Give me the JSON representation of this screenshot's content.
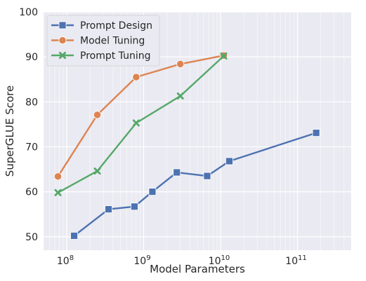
{
  "chart_data": {
    "type": "line",
    "xlabel": "Model Parameters",
    "ylabel": "SuperGLUE Score",
    "xscale": "log",
    "xlim": [
      50000000,
      500000000000
    ],
    "ylim": [
      47,
      100
    ],
    "x_ticks": [
      {
        "value": 100000000,
        "base": "10",
        "exp": "8"
      },
      {
        "value": 1000000000,
        "base": "10",
        "exp": "9"
      },
      {
        "value": 10000000000,
        "base": "10",
        "exp": "10"
      },
      {
        "value": 100000000000,
        "base": "10",
        "exp": "11"
      }
    ],
    "y_ticks": [
      50,
      60,
      70,
      80,
      90,
      100
    ],
    "grid": true,
    "legend_position": "top-left",
    "series": [
      {
        "name": "Prompt Design",
        "color": "#4c72b0",
        "marker": "square",
        "points": [
          {
            "x": 125000000,
            "y": 50.2
          },
          {
            "x": 350000000,
            "y": 56.1
          },
          {
            "x": 760000000,
            "y": 56.7
          },
          {
            "x": 1300000000,
            "y": 60.0
          },
          {
            "x": 2700000000,
            "y": 64.3
          },
          {
            "x": 6700000000,
            "y": 63.5
          },
          {
            "x": 13000000000,
            "y": 66.8
          },
          {
            "x": 175000000000,
            "y": 73.1
          }
        ]
      },
      {
        "name": "Model Tuning",
        "color": "#dd8452",
        "marker": "circle",
        "points": [
          {
            "x": 77000000,
            "y": 63.4
          },
          {
            "x": 250000000,
            "y": 77.1
          },
          {
            "x": 800000000,
            "y": 85.5
          },
          {
            "x": 3000000000,
            "y": 88.4
          },
          {
            "x": 11000000000,
            "y": 90.3
          }
        ]
      },
      {
        "name": "Prompt Tuning",
        "color": "#55a868",
        "marker": "x",
        "points": [
          {
            "x": 77000000,
            "y": 59.8
          },
          {
            "x": 250000000,
            "y": 64.6
          },
          {
            "x": 800000000,
            "y": 75.3
          },
          {
            "x": 3000000000,
            "y": 81.3
          },
          {
            "x": 11000000000,
            "y": 90.2
          }
        ]
      }
    ]
  },
  "colors": {
    "plot_background": "#eaeaf2",
    "grid": "#ffffff"
  }
}
